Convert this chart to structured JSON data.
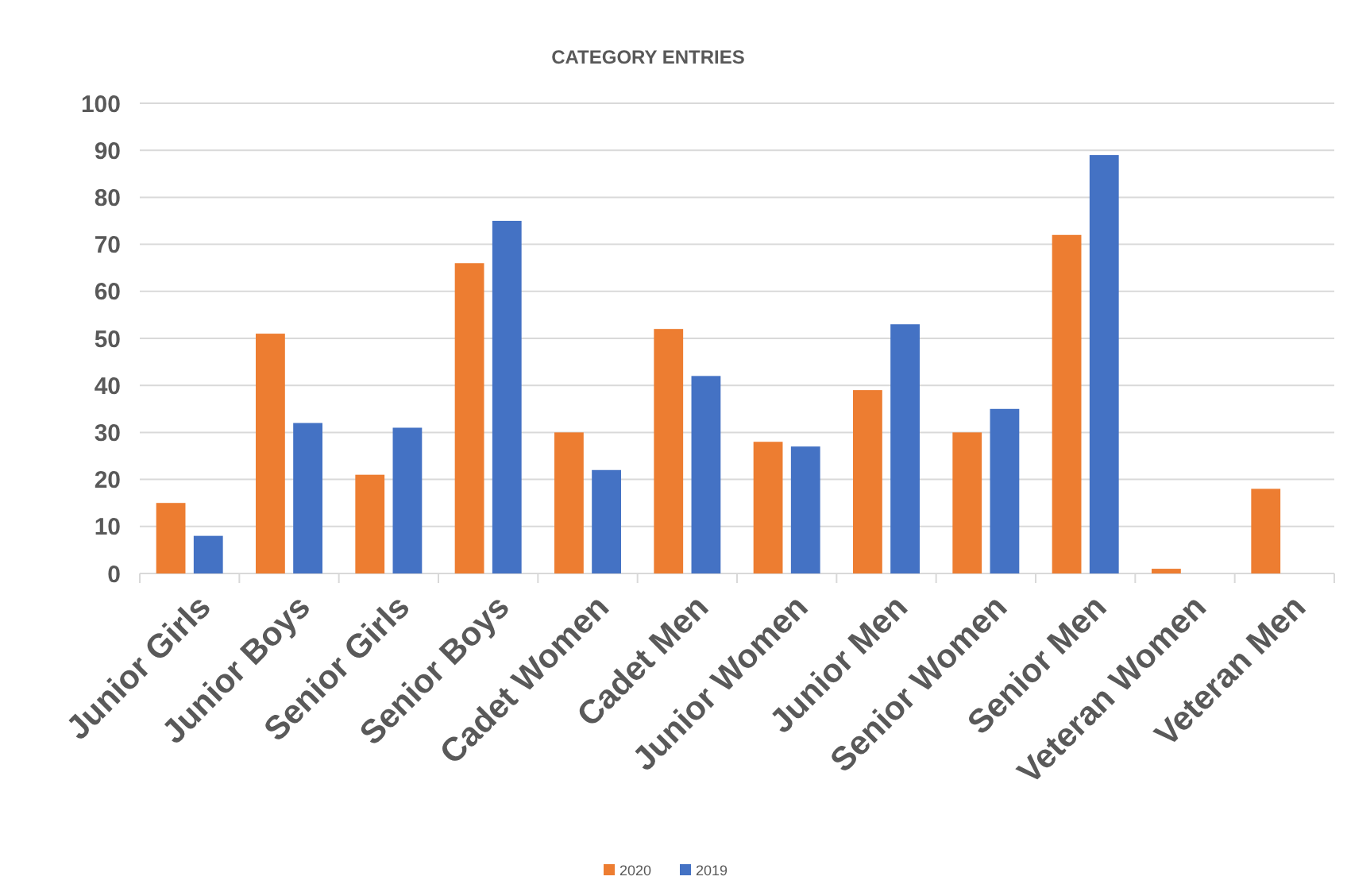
{
  "chart_data": {
    "type": "bar",
    "title": "CATEGORY ENTRIES",
    "categories": [
      "Junior Girls",
      "Junior Boys",
      "Senior Girls",
      "Senior Boys",
      "Cadet Women",
      "Cadet Men",
      "Junior Women",
      "Junior Men",
      "Senior Women",
      "Senior Men",
      "Veteran Women",
      "Veteran Men"
    ],
    "series": [
      {
        "name": "2020",
        "color": "#ed7d31",
        "values": [
          15,
          51,
          21,
          66,
          30,
          52,
          28,
          39,
          30,
          72,
          1,
          18
        ]
      },
      {
        "name": "2019",
        "color": "#4472c4",
        "values": [
          8,
          32,
          31,
          75,
          22,
          42,
          27,
          53,
          35,
          89,
          null,
          null
        ]
      }
    ],
    "ylim": [
      0,
      100
    ],
    "yticks": [
      0,
      10,
      20,
      30,
      40,
      50,
      60,
      70,
      80,
      90,
      100
    ],
    "grid": "y",
    "legend": "bottom"
  }
}
